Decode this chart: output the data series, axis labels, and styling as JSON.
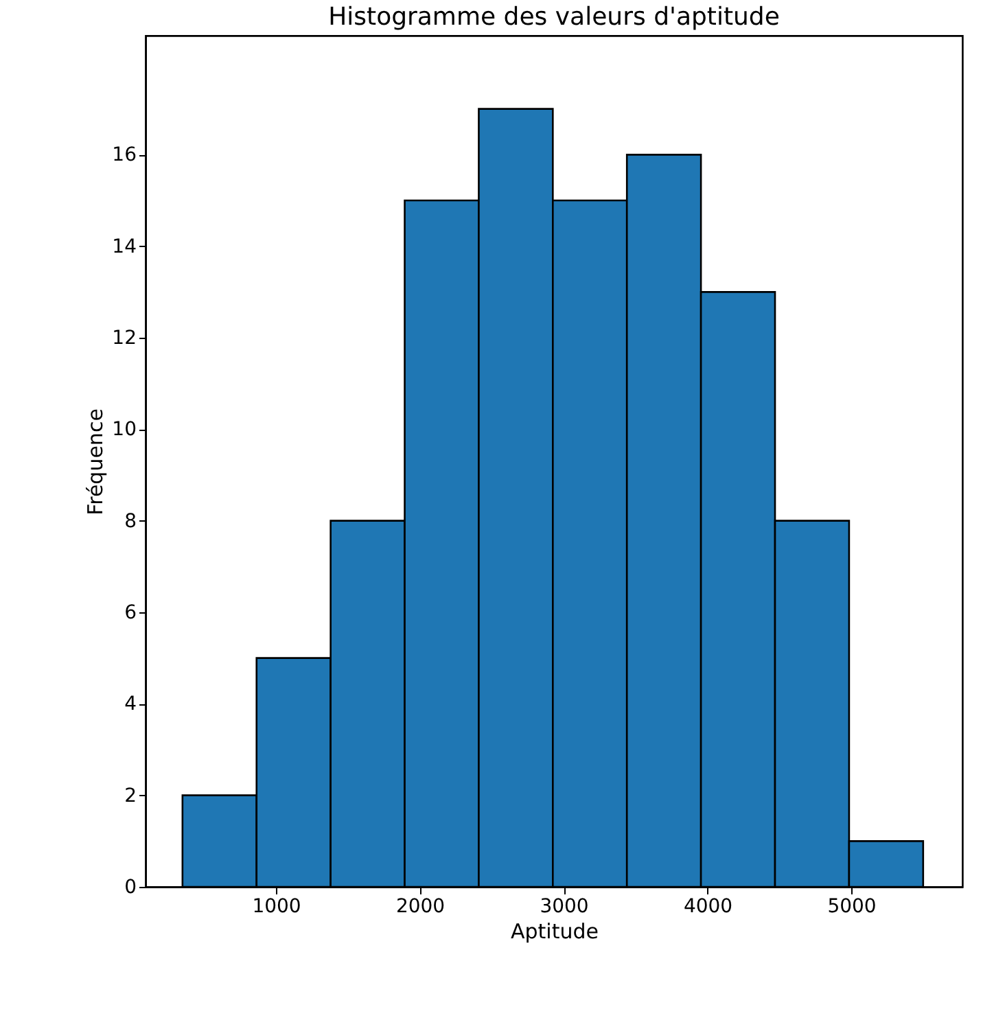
{
  "chart_data": {
    "type": "histogram",
    "title": "Histogramme des valeurs d'aptitude",
    "xlabel": "Aptitude",
    "ylabel": "Fréquence",
    "bins": [
      350,
      865,
      1380,
      1895,
      2410,
      2925,
      3440,
      3955,
      4470,
      4985,
      5500
    ],
    "values": [
      2,
      5,
      8,
      15,
      17,
      15,
      16,
      13,
      8,
      1
    ],
    "color": "#1f77b4",
    "xlim": [
      93,
      5773
    ],
    "xticks": [
      1000,
      2000,
      3000,
      4000,
      5000
    ],
    "ylim": [
      0,
      18.6
    ],
    "yticks": [
      0,
      2,
      4,
      6,
      8,
      10,
      12,
      14,
      16
    ],
    "grid": false
  }
}
